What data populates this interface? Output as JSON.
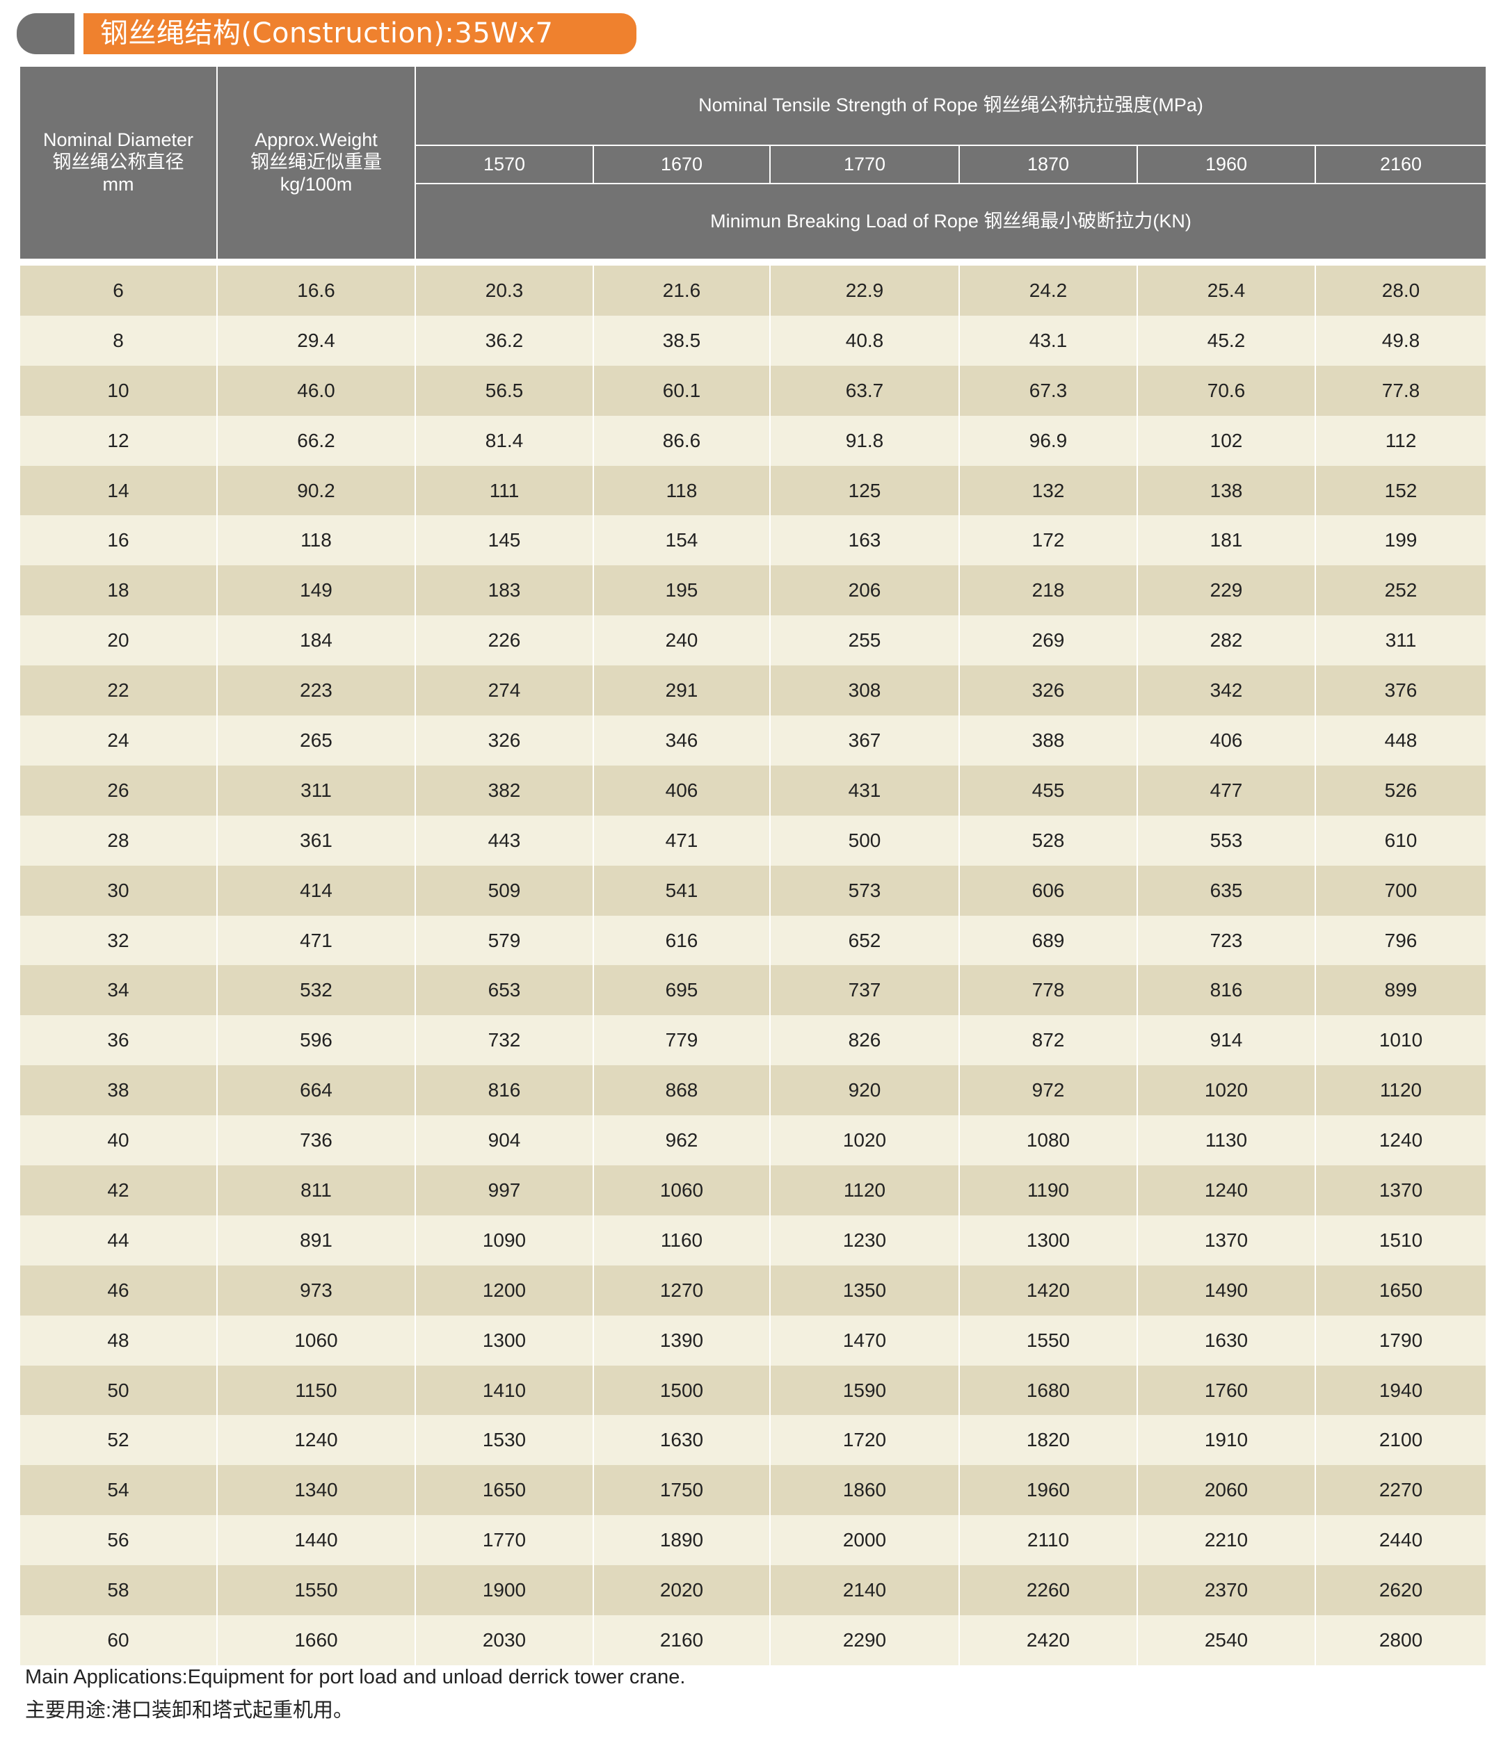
{
  "title": "钢丝绳结构(Construction):35Wx7",
  "colors": {
    "header_bg": "#737373",
    "accent": "#ef812e",
    "row_odd": "#e0d9bd",
    "row_even": "#f3f0df"
  },
  "header": {
    "diameter": [
      "Nominal Diameter",
      "钢丝绳公称直径",
      "mm"
    ],
    "weight": [
      "Approx.Weight",
      "钢丝绳近似重量",
      "kg/100m"
    ],
    "tensile": "Nominal Tensile Strength of Rope  钢丝绳公称抗拉强度(MPa)",
    "grades": [
      "1570",
      "1670",
      "1770",
      "1870",
      "1960",
      "2160"
    ],
    "breaking": "Minimun Breaking Load of Rope  钢丝绳最小破断拉力(KN)"
  },
  "rows": [
    [
      "6",
      "16.6",
      "20.3",
      "21.6",
      "22.9",
      "24.2",
      "25.4",
      "28.0"
    ],
    [
      "8",
      "29.4",
      "36.2",
      "38.5",
      "40.8",
      "43.1",
      "45.2",
      "49.8"
    ],
    [
      "10",
      "46.0",
      "56.5",
      "60.1",
      "63.7",
      "67.3",
      "70.6",
      "77.8"
    ],
    [
      "12",
      "66.2",
      "81.4",
      "86.6",
      "91.8",
      "96.9",
      "102",
      "112"
    ],
    [
      "14",
      "90.2",
      "111",
      "118",
      "125",
      "132",
      "138",
      "152"
    ],
    [
      "16",
      "118",
      "145",
      "154",
      "163",
      "172",
      "181",
      "199"
    ],
    [
      "18",
      "149",
      "183",
      "195",
      "206",
      "218",
      "229",
      "252"
    ],
    [
      "20",
      "184",
      "226",
      "240",
      "255",
      "269",
      "282",
      "311"
    ],
    [
      "22",
      "223",
      "274",
      "291",
      "308",
      "326",
      "342",
      "376"
    ],
    [
      "24",
      "265",
      "326",
      "346",
      "367",
      "388",
      "406",
      "448"
    ],
    [
      "26",
      "311",
      "382",
      "406",
      "431",
      "455",
      "477",
      "526"
    ],
    [
      "28",
      "361",
      "443",
      "471",
      "500",
      "528",
      "553",
      "610"
    ],
    [
      "30",
      "414",
      "509",
      "541",
      "573",
      "606",
      "635",
      "700"
    ],
    [
      "32",
      "471",
      "579",
      "616",
      "652",
      "689",
      "723",
      "796"
    ],
    [
      "34",
      "532",
      "653",
      "695",
      "737",
      "778",
      "816",
      "899"
    ],
    [
      "36",
      "596",
      "732",
      "779",
      "826",
      "872",
      "914",
      "1010"
    ],
    [
      "38",
      "664",
      "816",
      "868",
      "920",
      "972",
      "1020",
      "1120"
    ],
    [
      "40",
      "736",
      "904",
      "962",
      "1020",
      "1080",
      "1130",
      "1240"
    ],
    [
      "42",
      "811",
      "997",
      "1060",
      "1120",
      "1190",
      "1240",
      "1370"
    ],
    [
      "44",
      "891",
      "1090",
      "1160",
      "1230",
      "1300",
      "1370",
      "1510"
    ],
    [
      "46",
      "973",
      "1200",
      "1270",
      "1350",
      "1420",
      "1490",
      "1650"
    ],
    [
      "48",
      "1060",
      "1300",
      "1390",
      "1470",
      "1550",
      "1630",
      "1790"
    ],
    [
      "50",
      "1150",
      "1410",
      "1500",
      "1590",
      "1680",
      "1760",
      "1940"
    ],
    [
      "52",
      "1240",
      "1530",
      "1630",
      "1720",
      "1820",
      "1910",
      "2100"
    ],
    [
      "54",
      "1340",
      "1650",
      "1750",
      "1860",
      "1960",
      "2060",
      "2270"
    ],
    [
      "56",
      "1440",
      "1770",
      "1890",
      "2000",
      "2110",
      "2210",
      "2440"
    ],
    [
      "58",
      "1550",
      "1900",
      "2020",
      "2140",
      "2260",
      "2370",
      "2620"
    ],
    [
      "60",
      "1660",
      "2030",
      "2160",
      "2290",
      "2420",
      "2540",
      "2800"
    ]
  ],
  "footnote": {
    "en": "Main Applications:Equipment for port load and unload derrick tower crane.",
    "zh": "主要用途:港口装卸和塔式起重机用。"
  }
}
